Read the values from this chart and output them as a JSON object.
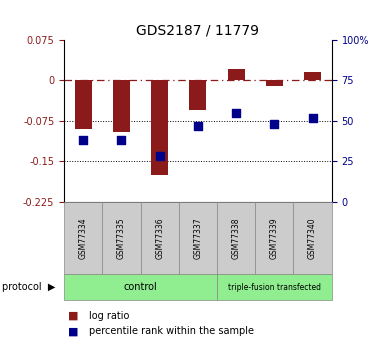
{
  "title": "GDS2187 / 11779",
  "samples": [
    "GSM77334",
    "GSM77335",
    "GSM77336",
    "GSM77337",
    "GSM77338",
    "GSM77339",
    "GSM77340"
  ],
  "log_ratios": [
    -0.09,
    -0.095,
    -0.175,
    -0.055,
    0.02,
    -0.01,
    0.015
  ],
  "percentile_ranks": [
    38,
    38,
    28,
    47,
    55,
    48,
    52
  ],
  "ylim_left": [
    -0.225,
    0.075
  ],
  "ylim_right": [
    0,
    100
  ],
  "yticks_left": [
    0.075,
    0,
    -0.075,
    -0.15,
    -0.225
  ],
  "yticks_right": [
    100,
    75,
    50,
    25,
    0
  ],
  "hline_dashed": 0,
  "hlines_dotted": [
    -0.075,
    -0.15
  ],
  "bar_color": "#8B1A1A",
  "dot_color": "#00008B",
  "bar_width": 0.45,
  "dot_size": 28,
  "control_n": 4,
  "triple_n": 3,
  "control_label": "control",
  "triple_label": "triple-fusion transfected",
  "protocol_label": "protocol",
  "legend_entries": [
    "log ratio",
    "percentile rank within the sample"
  ],
  "label_box_color": "#cccccc",
  "group_box_color": "#90EE90",
  "title_fontsize": 10,
  "tick_fontsize": 7,
  "legend_fontsize": 7,
  "label_fontsize": 5.5,
  "group_fontsize": 7
}
